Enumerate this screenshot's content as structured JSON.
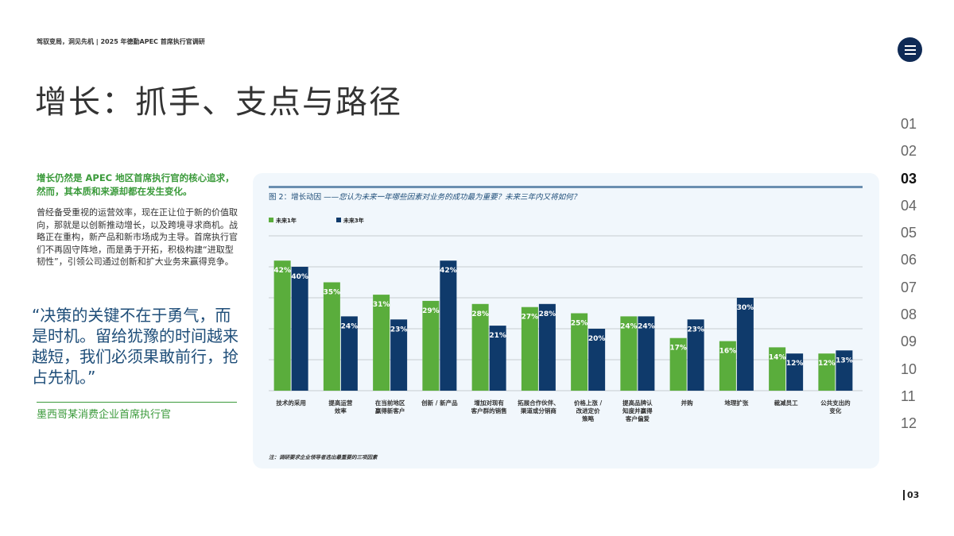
{
  "header": {
    "breadcrumb": "驾驭变局，洞见先机 | 2025 年德勤APEC 首席执行官调研",
    "title": "增长：抓手、支点与路径"
  },
  "nav": {
    "items": [
      "01",
      "02",
      "03",
      "04",
      "05",
      "06",
      "07",
      "08",
      "09",
      "10",
      "11",
      "12"
    ],
    "active": "03",
    "page_number": "03"
  },
  "left": {
    "lead": "增长仍然是 APEC 地区首席执行官的核心追求，然而，其本质和来源却都在发生变化。",
    "body": "曾经备受重视的运营效率，现在正让位于新的价值取向，那就是以创新推动增长，以及跨境寻求商机。战略正在重构，新产品和新市场成为主导。首席执行官们不再固守阵地，而是勇于开拓，积极构建“进取型韧性”，引领公司通过创新和扩大业务来赢得竞争。",
    "quote": "“决策的关键不在于勇气，而是时机。留给犹豫的时间越来越短，我们必须果敢前行，抢占先机。”",
    "quote_source": "墨西哥某消费企业首席执行官"
  },
  "chart_data": {
    "type": "bar",
    "title_prefix": "图 2：增长动因 ——",
    "title": "您认为未来一年哪些因素对业务的成功最为重要？未来三年内又将如何？",
    "categories": [
      "技术的采用",
      "提高运营\n效率",
      "在当前地区\n赢得新客户",
      "创新 / 新产品",
      "增加对现有\n客户群的销售",
      "拓展合作伙伴、\n渠道或分销商",
      "价格上涨 /\n改进定价\n策略",
      "提高品牌认\n知度并赢得\n客户偏爱",
      "并购",
      "地理扩张",
      "裁减员工",
      "公共支出的\n变化"
    ],
    "series": [
      {
        "name": "未来1年",
        "color": "#5aad3c",
        "values": [
          42,
          35,
          31,
          29,
          28,
          27,
          25,
          24,
          17,
          16,
          14,
          12
        ]
      },
      {
        "name": "未来3年",
        "color": "#0f3a6b",
        "values": [
          40,
          24,
          23,
          42,
          21,
          28,
          20,
          24,
          23,
          30,
          12,
          13
        ]
      }
    ],
    "ylim": [
      0,
      50
    ],
    "grid": true,
    "legend": "top-left",
    "unit": "%",
    "note": "注：调研要求企业领导者选出最重要的三项因素"
  }
}
